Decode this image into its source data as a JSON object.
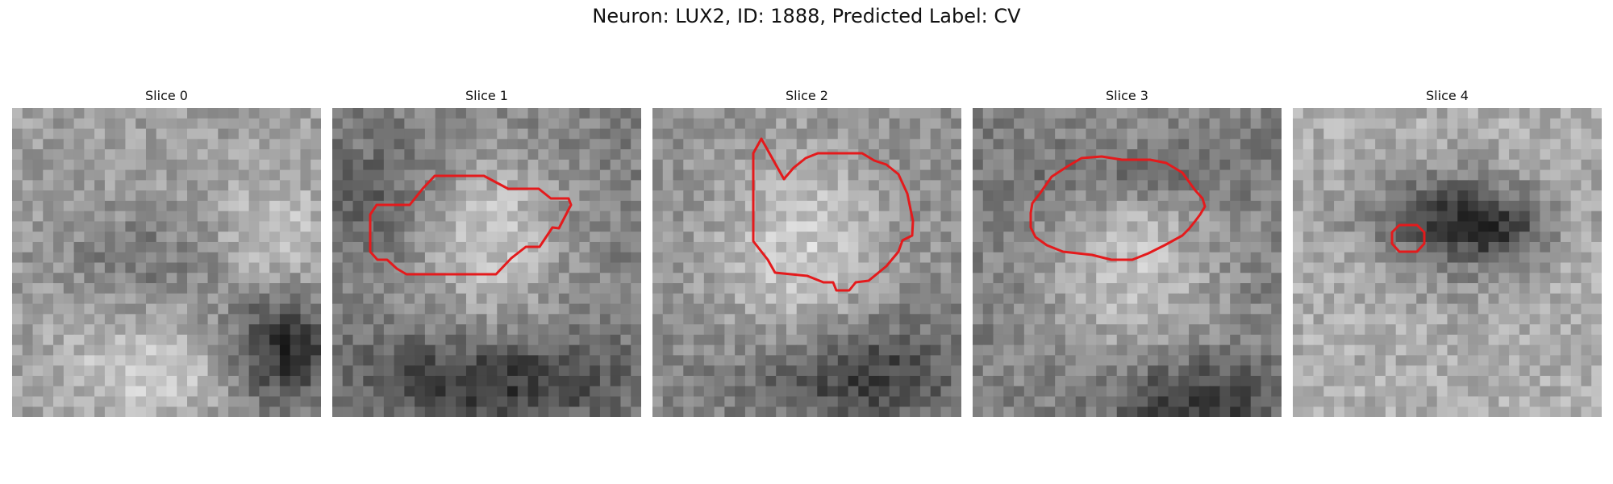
{
  "title": "Neuron: LUX2, ID: 1888, Predicted Label: CV",
  "overlay_color": "#e41a1c",
  "panels": [
    {
      "label": "Slice 0"
    },
    {
      "label": "Slice 1"
    },
    {
      "label": "Slice 2"
    },
    {
      "label": "Slice 3"
    },
    {
      "label": "Slice 4"
    }
  ]
}
